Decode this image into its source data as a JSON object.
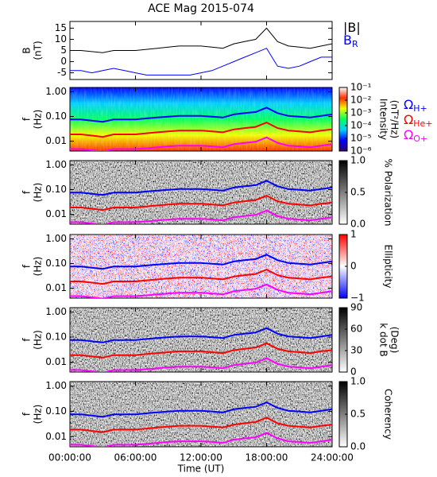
{
  "chart_data": [
    {
      "type": "line",
      "title": "ACE Mag 2015-074",
      "ylabel": [
        "B",
        "(nT)"
      ],
      "x": [
        0,
        1,
        2,
        3,
        4,
        5,
        6,
        7,
        8,
        9,
        10,
        11,
        12,
        13,
        14,
        15,
        16,
        17,
        18,
        19,
        20,
        21,
        22,
        23,
        24
      ],
      "xlim": [
        0,
        24
      ],
      "ylim": [
        -8,
        18
      ],
      "yticks": [
        -5,
        0,
        5,
        10,
        15
      ],
      "series": [
        {
          "name": "|B|",
          "color": "#000000",
          "values": [
            5,
            5,
            4.5,
            4,
            5,
            5,
            5,
            5.5,
            6,
            6.5,
            7,
            7,
            7,
            6.5,
            6,
            8,
            9,
            10,
            15,
            9,
            7,
            6.5,
            6,
            7,
            8
          ]
        },
        {
          "name": "B",
          "subscript": "R",
          "color": "#0000ff",
          "values": [
            -4,
            -4,
            -5,
            -4,
            -3,
            -4,
            -5,
            -6,
            -6,
            -6,
            -6,
            -6,
            -5,
            -4,
            -2,
            0,
            2,
            4,
            6,
            -2,
            -3,
            -2,
            0,
            2,
            2
          ]
        }
      ]
    },
    {
      "type": "spectrogram",
      "ylabel": [
        "f",
        "(Hz)"
      ],
      "ylog": true,
      "x": [
        0,
        1,
        2,
        3,
        4,
        5,
        6,
        7,
        8,
        9,
        10,
        11,
        12,
        13,
        14,
        15,
        16,
        17,
        18,
        19,
        20,
        21,
        22,
        23,
        24
      ],
      "xlim": [
        0,
        24
      ],
      "ylim": [
        0.004,
        1.5
      ],
      "yticks": [
        {
          "value": 1,
          "label": "1.00"
        },
        {
          "value": 0.1,
          "label": "0.10"
        },
        {
          "value": 0.01,
          "label": "0.01"
        }
      ],
      "colorbar": {
        "label": [
          "Intensity",
          "(nT²/Hz)"
        ],
        "log": true,
        "lim": [
          1e-06,
          0.1
        ],
        "ticks": [
          {
            "value": 0.1,
            "label": "10⁻¹"
          },
          {
            "value": 0.01,
            "label": "10⁻²"
          },
          {
            "value": 0.001,
            "label": "10⁻³"
          },
          {
            "value": 0.0001,
            "label": "10⁻⁴"
          },
          {
            "value": 1e-05,
            "label": "10⁻⁵"
          },
          {
            "value": 1e-06,
            "label": "10⁻⁶"
          }
        ],
        "colors": [
          "#30006a",
          "#0000ff",
          "#00d0ff",
          "#00ff60",
          "#f0ff00",
          "#ff3000",
          "#ffffff"
        ]
      },
      "series": [
        {
          "name": "Ω",
          "subscript": "H+",
          "color": "#0000ff",
          "values": [
            0.076,
            0.076,
            0.068,
            0.061,
            0.076,
            0.076,
            0.076,
            0.084,
            0.091,
            0.099,
            0.106,
            0.106,
            0.106,
            0.099,
            0.091,
            0.122,
            0.137,
            0.152,
            0.228,
            0.137,
            0.106,
            0.099,
            0.091,
            0.106,
            0.122
          ]
        },
        {
          "name": "Ω",
          "subscript": "He+",
          "color": "#ff0000",
          "values": [
            0.019,
            0.019,
            0.017,
            0.015,
            0.019,
            0.019,
            0.019,
            0.021,
            0.023,
            0.025,
            0.027,
            0.027,
            0.027,
            0.025,
            0.023,
            0.03,
            0.034,
            0.038,
            0.057,
            0.034,
            0.027,
            0.025,
            0.023,
            0.027,
            0.03
          ]
        },
        {
          "name": "Ω",
          "subscript": "O+",
          "color": "#ff00ff",
          "values": [
            0.0048,
            0.0048,
            0.0043,
            0.0038,
            0.0048,
            0.0048,
            0.0048,
            0.0052,
            0.0057,
            0.0062,
            0.0066,
            0.0066,
            0.0066,
            0.0062,
            0.0057,
            0.0076,
            0.0086,
            0.0095,
            0.0143,
            0.0086,
            0.0066,
            0.0062,
            0.0057,
            0.0066,
            0.0076
          ]
        }
      ]
    },
    {
      "type": "spectrogram",
      "ylabel": [
        "f",
        "(Hz)"
      ],
      "ylog": true,
      "x": [
        0,
        1,
        2,
        3,
        4,
        5,
        6,
        7,
        8,
        9,
        10,
        11,
        12,
        13,
        14,
        15,
        16,
        17,
        18,
        19,
        20,
        21,
        22,
        23,
        24
      ],
      "xlim": [
        0,
        24
      ],
      "ylim": [
        0.004,
        1.5
      ],
      "yticks": [
        {
          "value": 1,
          "label": "1.00"
        },
        {
          "value": 0.1,
          "label": "0.10"
        },
        {
          "value": 0.01,
          "label": "0.01"
        }
      ],
      "colorbar": {
        "label": [
          "% Polarization"
        ],
        "lim": [
          0,
          1
        ],
        "ticks": [
          {
            "value": 1,
            "label": "1.0"
          },
          {
            "value": 0.5,
            "label": "0.5"
          },
          {
            "value": 0,
            "label": "0.0"
          }
        ],
        "colors": [
          "#ffffff",
          "#000000"
        ]
      },
      "series": [
        {
          "color": "#0000ff",
          "values": [
            0.076,
            0.076,
            0.068,
            0.061,
            0.076,
            0.076,
            0.076,
            0.084,
            0.091,
            0.099,
            0.106,
            0.106,
            0.106,
            0.099,
            0.091,
            0.122,
            0.137,
            0.152,
            0.228,
            0.137,
            0.106,
            0.099,
            0.091,
            0.106,
            0.122
          ]
        },
        {
          "color": "#ff0000",
          "values": [
            0.019,
            0.019,
            0.017,
            0.015,
            0.019,
            0.019,
            0.019,
            0.021,
            0.023,
            0.025,
            0.027,
            0.027,
            0.027,
            0.025,
            0.023,
            0.03,
            0.034,
            0.038,
            0.057,
            0.034,
            0.027,
            0.025,
            0.023,
            0.027,
            0.03
          ]
        },
        {
          "color": "#ff00ff",
          "values": [
            0.0048,
            0.0048,
            0.0043,
            0.0038,
            0.0048,
            0.0048,
            0.0048,
            0.0052,
            0.0057,
            0.0062,
            0.0066,
            0.0066,
            0.0066,
            0.0062,
            0.0057,
            0.0076,
            0.0086,
            0.0095,
            0.0143,
            0.0086,
            0.0066,
            0.0062,
            0.0057,
            0.0066,
            0.0076
          ]
        }
      ]
    },
    {
      "type": "spectrogram",
      "ylabel": [
        "f",
        "(Hz)"
      ],
      "ylog": true,
      "x": [
        0,
        1,
        2,
        3,
        4,
        5,
        6,
        7,
        8,
        9,
        10,
        11,
        12,
        13,
        14,
        15,
        16,
        17,
        18,
        19,
        20,
        21,
        22,
        23,
        24
      ],
      "xlim": [
        0,
        24
      ],
      "ylim": [
        0.004,
        1.5
      ],
      "yticks": [
        {
          "value": 1,
          "label": "1.00"
        },
        {
          "value": 0.1,
          "label": "0.10"
        },
        {
          "value": 0.01,
          "label": "0.01"
        }
      ],
      "colorbar": {
        "label": [
          "Ellipticity"
        ],
        "lim": [
          -1,
          1
        ],
        "ticks": [
          1,
          0,
          {
            "value": -1,
            "label": "−1"
          }
        ],
        "colors": [
          "#0000ff",
          "#ffffff",
          "#ff0000"
        ]
      },
      "series": [
        {
          "color": "#0000ff",
          "values": [
            0.076,
            0.076,
            0.068,
            0.061,
            0.076,
            0.076,
            0.076,
            0.084,
            0.091,
            0.099,
            0.106,
            0.106,
            0.106,
            0.099,
            0.091,
            0.122,
            0.137,
            0.152,
            0.228,
            0.137,
            0.106,
            0.099,
            0.091,
            0.106,
            0.122
          ]
        },
        {
          "color": "#ff0000",
          "values": [
            0.019,
            0.019,
            0.017,
            0.015,
            0.019,
            0.019,
            0.019,
            0.021,
            0.023,
            0.025,
            0.027,
            0.027,
            0.027,
            0.025,
            0.023,
            0.03,
            0.034,
            0.038,
            0.057,
            0.034,
            0.027,
            0.025,
            0.023,
            0.027,
            0.03
          ]
        },
        {
          "color": "#ff00ff",
          "values": [
            0.0048,
            0.0048,
            0.0043,
            0.0038,
            0.0048,
            0.0048,
            0.0048,
            0.0052,
            0.0057,
            0.0062,
            0.0066,
            0.0066,
            0.0066,
            0.0062,
            0.0057,
            0.0076,
            0.0086,
            0.0095,
            0.0143,
            0.0086,
            0.0066,
            0.0062,
            0.0057,
            0.0066,
            0.0076
          ]
        }
      ]
    },
    {
      "type": "spectrogram",
      "ylabel": [
        "f",
        "(Hz)"
      ],
      "ylog": true,
      "x": [
        0,
        1,
        2,
        3,
        4,
        5,
        6,
        7,
        8,
        9,
        10,
        11,
        12,
        13,
        14,
        15,
        16,
        17,
        18,
        19,
        20,
        21,
        22,
        23,
        24
      ],
      "xlim": [
        0,
        24
      ],
      "ylim": [
        0.004,
        1.5
      ],
      "yticks": [
        {
          "value": 1,
          "label": "1.00"
        },
        {
          "value": 0.1,
          "label": "0.10"
        },
        {
          "value": 0.01,
          "label": "0.01"
        }
      ],
      "colorbar": {
        "label": [
          "k dot B",
          "(Deg)"
        ],
        "lim": [
          0,
          90
        ],
        "ticks": [
          90,
          60,
          30,
          0
        ],
        "colors": [
          "#ffffff",
          "#000000"
        ]
      },
      "series": [
        {
          "color": "#0000ff",
          "values": [
            0.076,
            0.076,
            0.068,
            0.061,
            0.076,
            0.076,
            0.076,
            0.084,
            0.091,
            0.099,
            0.106,
            0.106,
            0.106,
            0.099,
            0.091,
            0.122,
            0.137,
            0.152,
            0.228,
            0.137,
            0.106,
            0.099,
            0.091,
            0.106,
            0.122
          ]
        },
        {
          "color": "#ff0000",
          "values": [
            0.019,
            0.019,
            0.017,
            0.015,
            0.019,
            0.019,
            0.019,
            0.021,
            0.023,
            0.025,
            0.027,
            0.027,
            0.027,
            0.025,
            0.023,
            0.03,
            0.034,
            0.038,
            0.057,
            0.034,
            0.027,
            0.025,
            0.023,
            0.027,
            0.03
          ]
        },
        {
          "color": "#ff00ff",
          "values": [
            0.0048,
            0.0048,
            0.0043,
            0.0038,
            0.0048,
            0.0048,
            0.0048,
            0.0052,
            0.0057,
            0.0062,
            0.0066,
            0.0066,
            0.0066,
            0.0062,
            0.0057,
            0.0076,
            0.0086,
            0.0095,
            0.0143,
            0.0086,
            0.0066,
            0.0062,
            0.0057,
            0.0066,
            0.0076
          ]
        }
      ]
    },
    {
      "type": "spectrogram",
      "ylabel": [
        "f",
        "(Hz)"
      ],
      "ylog": true,
      "x": [
        0,
        1,
        2,
        3,
        4,
        5,
        6,
        7,
        8,
        9,
        10,
        11,
        12,
        13,
        14,
        15,
        16,
        17,
        18,
        19,
        20,
        21,
        22,
        23,
        24
      ],
      "xlim": [
        0,
        24
      ],
      "ylim": [
        0.004,
        1.5
      ],
      "yticks": [
        {
          "value": 1,
          "label": "1.00"
        },
        {
          "value": 0.1,
          "label": "0.10"
        },
        {
          "value": 0.01,
          "label": "0.01"
        }
      ],
      "xticks": [
        {
          "value": 0,
          "label": "00:00:00"
        },
        {
          "value": 6,
          "label": "06:00:00"
        },
        {
          "value": 12,
          "label": "12:00:00"
        },
        {
          "value": 18,
          "label": "18:00:00"
        },
        {
          "value": 24,
          "label": "24:00:00"
        }
      ],
      "xlabel": "Time (UT)",
      "colorbar": {
        "label": [
          "Coherency"
        ],
        "lim": [
          0,
          1
        ],
        "ticks": [
          {
            "value": 1,
            "label": "1.0"
          },
          {
            "value": 0.5,
            "label": "0.5"
          },
          {
            "value": 0,
            "label": "0.0"
          }
        ],
        "colors": [
          "#ffffff",
          "#000000"
        ]
      },
      "series": [
        {
          "color": "#0000ff",
          "values": [
            0.076,
            0.076,
            0.068,
            0.061,
            0.076,
            0.076,
            0.076,
            0.084,
            0.091,
            0.099,
            0.106,
            0.106,
            0.106,
            0.099,
            0.091,
            0.122,
            0.137,
            0.152,
            0.228,
            0.137,
            0.106,
            0.099,
            0.091,
            0.106,
            0.122
          ]
        },
        {
          "color": "#ff0000",
          "values": [
            0.019,
            0.019,
            0.017,
            0.015,
            0.019,
            0.019,
            0.019,
            0.021,
            0.023,
            0.025,
            0.027,
            0.027,
            0.027,
            0.025,
            0.023,
            0.03,
            0.034,
            0.038,
            0.057,
            0.034,
            0.027,
            0.025,
            0.023,
            0.027,
            0.03
          ]
        },
        {
          "color": "#ff00ff",
          "values": [
            0.0048,
            0.0048,
            0.0043,
            0.0038,
            0.0048,
            0.0048,
            0.0048,
            0.0052,
            0.0057,
            0.0062,
            0.0066,
            0.0066,
            0.0066,
            0.0062,
            0.0057,
            0.0076,
            0.0086,
            0.0095,
            0.0143,
            0.0086,
            0.0066,
            0.0062,
            0.0057,
            0.0066,
            0.0076
          ]
        }
      ]
    }
  ]
}
